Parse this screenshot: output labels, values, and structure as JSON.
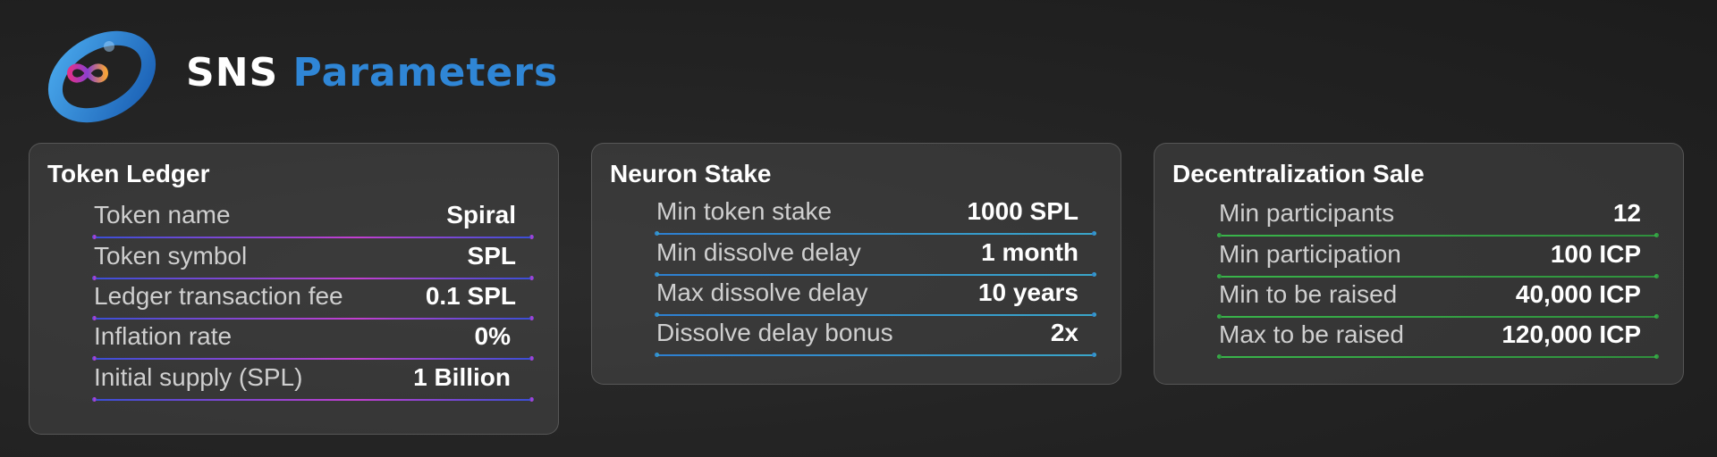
{
  "header": {
    "title_part1": "SNS",
    "title_part2": "Parameters"
  },
  "colors": {
    "token_line_start": "#3a4fd6",
    "token_line_mid": "#c23fd0",
    "token_line_end": "#3a4fd6",
    "neuron_line_start": "#2d7fd1",
    "neuron_line_end": "#3aa6c9",
    "sale_line_start": "#39b54a",
    "sale_line_end": "#2f8f3d",
    "title_blue": "#2f86d6"
  },
  "token_ledger": {
    "title": "Token Ledger",
    "rows": [
      {
        "label": "Token name",
        "value": "Spiral"
      },
      {
        "label": "Token symbol",
        "value": "SPL"
      },
      {
        "label": "Ledger transaction fee",
        "value": "0.1 SPL"
      },
      {
        "label": "Inflation rate",
        "value": "0%"
      },
      {
        "label": "Initial supply (SPL)",
        "value": "1 Billion"
      }
    ]
  },
  "neuron_stake": {
    "title": "Neuron Stake",
    "rows": [
      {
        "label": "Min token stake",
        "value": "1000 SPL"
      },
      {
        "label": "Min dissolve delay",
        "value": "1 month"
      },
      {
        "label": "Max dissolve delay",
        "value": "10 years"
      },
      {
        "label": "Dissolve delay bonus",
        "value": "2x"
      }
    ]
  },
  "decentralization_sale": {
    "title": "Decentralization Sale",
    "rows": [
      {
        "label": "Min participants",
        "value": "12"
      },
      {
        "label": "Min participation",
        "value": "100 ICP"
      },
      {
        "label": "Min to be raised",
        "value": "40,000 ICP"
      },
      {
        "label": "Max to be raised",
        "value": "120,000 ICP"
      }
    ]
  }
}
